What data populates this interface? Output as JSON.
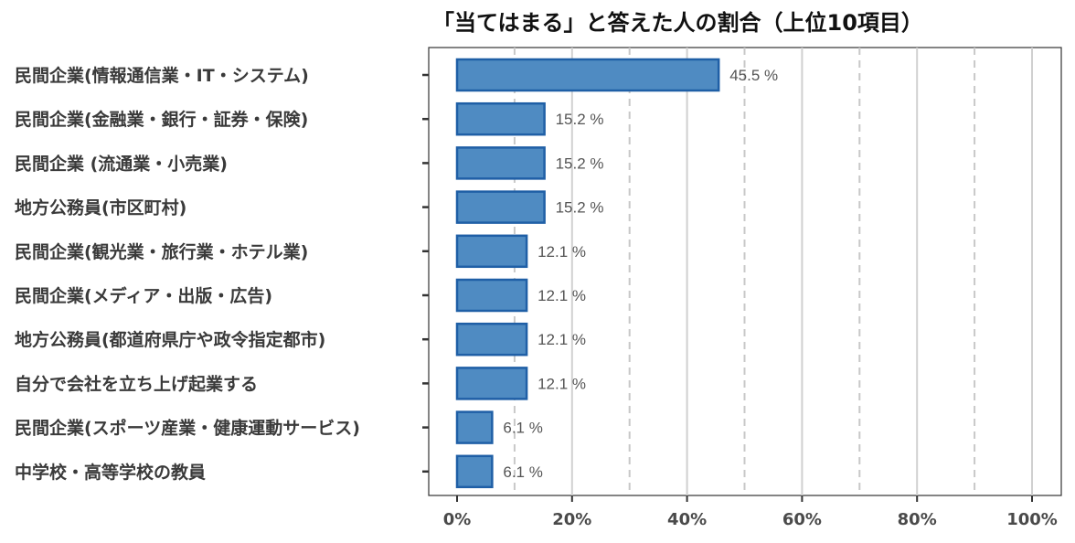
{
  "chart_data": {
    "type": "bar",
    "orientation": "horizontal",
    "title": "「当てはまる」と答えた人の割合（上位10項目）",
    "categories": [
      "民間企業(情報通信業・IT・システム)",
      "民間企業(金融業・銀行・証券・保険)",
      "民間企業 (流通業・小売業)",
      "地方公務員(市区町村)",
      "民間企業(観光業・旅行業・ホテル業)",
      "民間企業(メディア・出版・広告)",
      "地方公務員(都道府県庁や政令指定都市)",
      "自分で会社を立ち上げ起業する",
      "民間企業(スポーツ産業・健康運動サービス)",
      "中学校・高等学校の教員"
    ],
    "values": [
      45.5,
      15.2,
      15.2,
      15.2,
      12.1,
      12.1,
      12.1,
      12.1,
      6.1,
      6.1
    ],
    "value_labels": [
      "45.5 %",
      "15.2 %",
      "15.2 %",
      "15.2 %",
      "12.1 %",
      "12.1 %",
      "12.1 %",
      "12.1 %",
      "6.1 %",
      "6.1 %"
    ],
    "xlim": [
      0,
      100
    ],
    "x_ticks": [
      0,
      20,
      40,
      60,
      80,
      100
    ],
    "x_tick_labels": [
      "0%",
      "20%",
      "40%",
      "60%",
      "80%",
      "100%"
    ],
    "dashed_gridlines_at": [
      10,
      30,
      50,
      70,
      90
    ],
    "solid_gridlines_at": [
      20,
      40,
      60,
      80,
      100
    ],
    "grid": true,
    "colors": {
      "bar_fill": "#4f8bc2",
      "bar_edge": "#1f5fa6",
      "grid_solid": "#d0d0d0",
      "grid_dashed": "#c8c8c8",
      "axis": "#333333"
    }
  }
}
